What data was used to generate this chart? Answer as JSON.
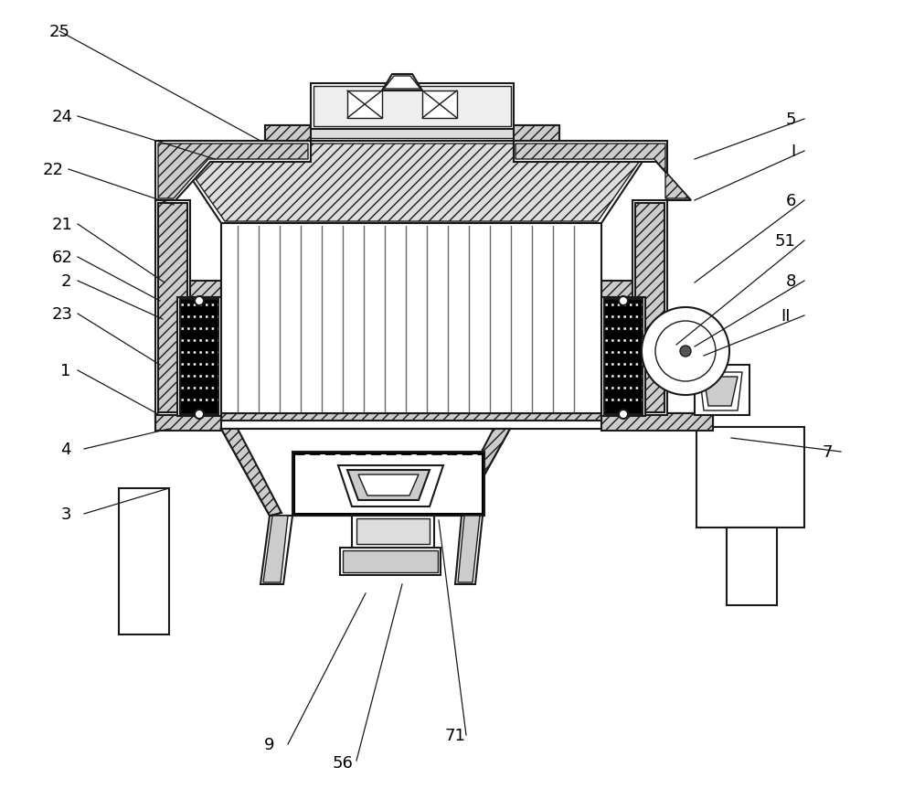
{
  "bg_color": "#ffffff",
  "line_color": "#1a1a1a",
  "figsize": [
    10.0,
    8.87
  ],
  "dpi": 100,
  "label_data": [
    [
      "25",
      65,
      35
    ],
    [
      "24",
      68,
      128
    ],
    [
      "22",
      58,
      186
    ],
    [
      "21",
      68,
      246
    ],
    [
      "62",
      68,
      282
    ],
    [
      "2",
      72,
      308
    ],
    [
      "23",
      68,
      344
    ],
    [
      "1",
      72,
      406
    ],
    [
      "4",
      72,
      492
    ],
    [
      "3",
      72,
      563
    ],
    [
      "9",
      295,
      815
    ],
    [
      "56",
      375,
      835
    ],
    [
      "71",
      498,
      805
    ],
    [
      "5",
      865,
      131
    ],
    [
      "I",
      868,
      166
    ],
    [
      "6",
      865,
      220
    ],
    [
      "51",
      859,
      264
    ],
    [
      "8",
      865,
      308
    ],
    [
      "II",
      860,
      346
    ],
    [
      "7",
      905,
      495
    ]
  ],
  "leader_lines": [
    [
      65,
      35,
      285,
      155
    ],
    [
      85,
      128,
      235,
      175
    ],
    [
      75,
      186,
      190,
      225
    ],
    [
      85,
      246,
      180,
      310
    ],
    [
      85,
      282,
      175,
      330
    ],
    [
      85,
      308,
      178,
      350
    ],
    [
      85,
      344,
      175,
      400
    ],
    [
      85,
      406,
      175,
      455
    ],
    [
      92,
      492,
      185,
      470
    ],
    [
      92,
      563,
      185,
      535
    ],
    [
      315,
      815,
      400,
      650
    ],
    [
      390,
      833,
      440,
      640
    ],
    [
      510,
      805,
      480,
      570
    ],
    [
      880,
      131,
      760,
      175
    ],
    [
      880,
      166,
      760,
      220
    ],
    [
      880,
      220,
      760,
      310
    ],
    [
      880,
      264,
      740,
      378
    ],
    [
      880,
      308,
      760,
      380
    ],
    [
      880,
      346,
      770,
      390
    ],
    [
      920,
      495,
      800,
      480
    ]
  ]
}
